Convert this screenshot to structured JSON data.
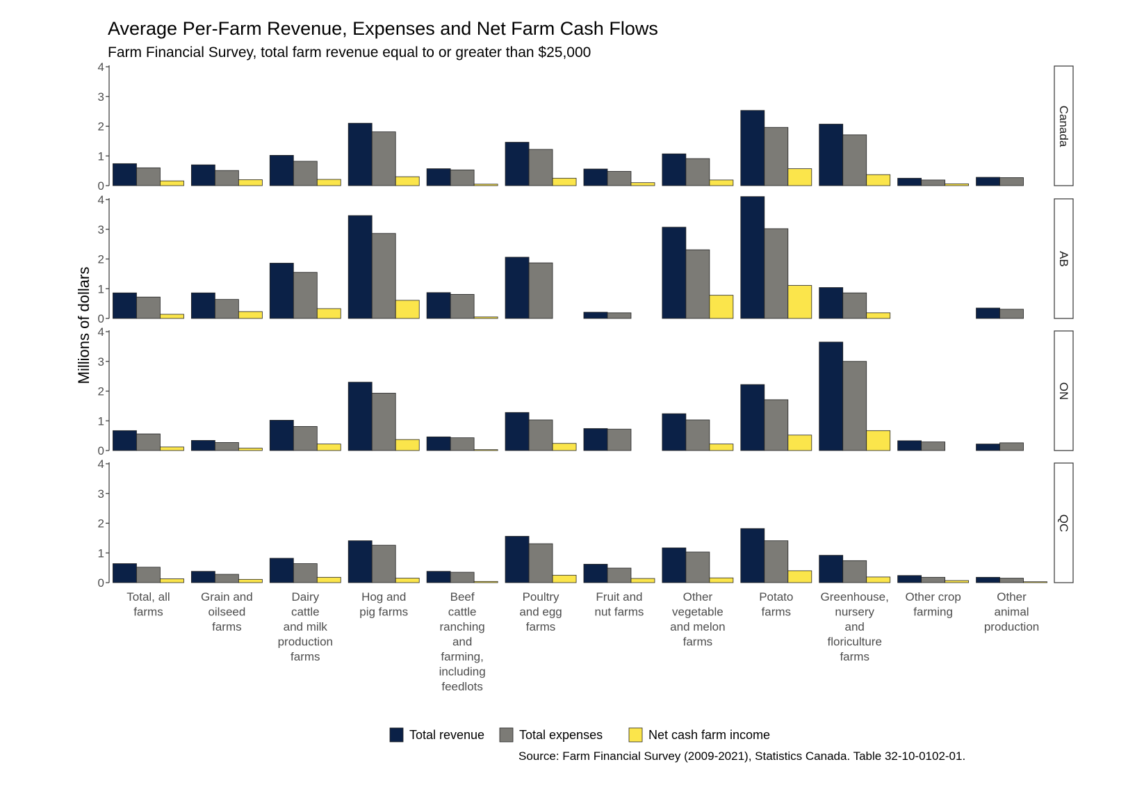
{
  "chart_data": {
    "type": "bar",
    "title": "Average Per-Farm Revenue, Expenses and Net Farm Cash Flows",
    "subtitle": "Farm Financial Survey, total farm revenue equal to or greater than $25,000",
    "ylabel": "Millions of dollars",
    "xlabel": "",
    "ylim": [
      0,
      4
    ],
    "yticks": [
      0,
      1,
      2,
      3,
      4
    ],
    "grid": false,
    "legend_position": "bottom",
    "source": "Source: Farm Financial Survey (2009-2021),  Statistics Canada. Table 32-10-0102-01.",
    "categories": [
      [
        "Total, all",
        "farms"
      ],
      [
        "Grain and",
        "oilseed",
        "farms"
      ],
      [
        "Dairy",
        "cattle",
        "and milk",
        "production",
        "farms"
      ],
      [
        "Hog and",
        "pig farms"
      ],
      [
        "Beef",
        "cattle",
        "ranching",
        "and",
        "farming,",
        "including",
        "feedlots"
      ],
      [
        "Poultry",
        "and egg",
        "farms"
      ],
      [
        "Fruit and",
        "nut farms"
      ],
      [
        "Other",
        "vegetable",
        "and melon",
        "farms"
      ],
      [
        "Potato",
        "farms"
      ],
      [
        "Greenhouse,",
        "nursery",
        "and",
        "floriculture",
        "farms"
      ],
      [
        "Other crop",
        "farming"
      ],
      [
        "Other",
        "animal",
        "production"
      ]
    ],
    "series_meta": [
      {
        "name": "Total revenue",
        "color": "#0b2147"
      },
      {
        "name": "Total expenses",
        "color": "#7c7b76"
      },
      {
        "name": "Net cash farm income",
        "color": "#fbe54b"
      }
    ],
    "panels": [
      {
        "label": "Canada",
        "series": [
          {
            "name": "Total revenue",
            "values": [
              0.74,
              0.7,
              1.02,
              2.1,
              0.57,
              1.46,
              0.56,
              1.07,
              2.53,
              2.07,
              0.25,
              0.28
            ]
          },
          {
            "name": "Total expenses",
            "values": [
              0.6,
              0.51,
              0.82,
              1.81,
              0.53,
              1.22,
              0.48,
              0.91,
              1.96,
              1.71,
              0.19,
              0.27
            ]
          },
          {
            "name": "Net cash farm income",
            "values": [
              0.16,
              0.2,
              0.21,
              0.3,
              0.05,
              0.25,
              0.1,
              0.19,
              0.57,
              0.37,
              0.06,
              null
            ]
          }
        ]
      },
      {
        "label": "AB",
        "series": [
          {
            "name": "Total revenue",
            "values": [
              0.86,
              0.86,
              1.86,
              3.46,
              0.87,
              2.06,
              0.21,
              3.07,
              4.1,
              1.04,
              null,
              0.35
            ]
          },
          {
            "name": "Total expenses",
            "values": [
              0.72,
              0.64,
              1.55,
              2.86,
              0.81,
              1.87,
              0.19,
              2.31,
              3.02,
              0.86,
              null,
              0.31
            ]
          },
          {
            "name": "Net cash farm income",
            "values": [
              0.14,
              0.23,
              0.33,
              0.61,
              0.05,
              null,
              null,
              0.78,
              1.11,
              0.19,
              null,
              null
            ]
          }
        ]
      },
      {
        "label": "ON",
        "series": [
          {
            "name": "Total revenue",
            "values": [
              0.67,
              0.34,
              1.02,
              2.3,
              0.46,
              1.28,
              0.74,
              1.24,
              2.22,
              3.65,
              0.33,
              0.22
            ]
          },
          {
            "name": "Total expenses",
            "values": [
              0.56,
              0.27,
              0.81,
              1.93,
              0.43,
              1.03,
              0.72,
              1.03,
              1.71,
              3.0,
              0.29,
              0.26
            ]
          },
          {
            "name": "Net cash farm income",
            "values": [
              0.12,
              0.08,
              0.22,
              0.37,
              0.03,
              0.24,
              null,
              0.22,
              0.52,
              0.67,
              null,
              null
            ]
          }
        ]
      },
      {
        "label": "QC",
        "series": [
          {
            "name": "Total revenue",
            "values": [
              0.64,
              0.38,
              0.82,
              1.41,
              0.38,
              1.56,
              0.62,
              1.17,
              1.82,
              0.92,
              0.24,
              0.18
            ]
          },
          {
            "name": "Total expenses",
            "values": [
              0.52,
              0.28,
              0.64,
              1.26,
              0.35,
              1.31,
              0.49,
              1.03,
              1.41,
              0.74,
              0.18,
              0.15
            ]
          },
          {
            "name": "Net cash farm income",
            "values": [
              0.13,
              0.11,
              0.18,
              0.15,
              0.04,
              0.25,
              0.14,
              0.16,
              0.4,
              0.19,
              0.07,
              0.03
            ]
          }
        ]
      }
    ]
  }
}
